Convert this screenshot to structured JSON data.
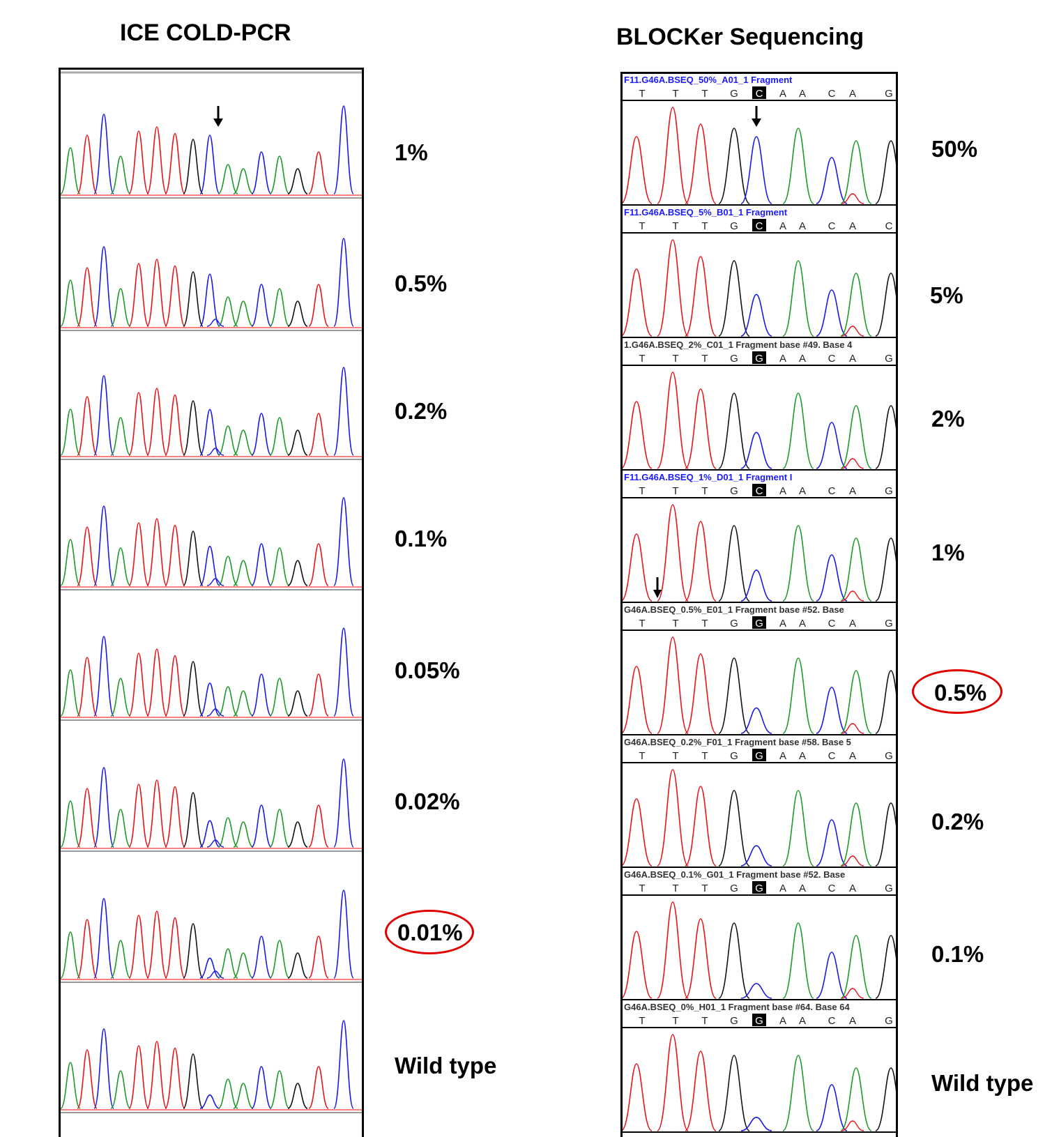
{
  "left": {
    "title": "ICE COLD-PCR",
    "labels": [
      "1%",
      "0.5%",
      "0.2%",
      "0.1%",
      "0.05%",
      "0.02%",
      "0.01%",
      "Wild type"
    ],
    "highlight_index": 6
  },
  "right": {
    "title": "BLOCKer Sequencing",
    "labels": [
      "50%",
      "5%",
      "2%",
      "1%",
      "0.5%",
      "0.2%",
      "0.1%",
      "Wild type"
    ],
    "highlight_index": 4,
    "traces": [
      {
        "header": "F11.G46A.BSEQ_50%_A01_1 Fragment",
        "bases": "T T T G C A A C A G",
        "header_color": "#1a1aff"
      },
      {
        "header": "F11.G46A.BSEQ_5%_B01_1 Fragment",
        "bases": "T T T G C A A C A C",
        "header_color": "#1a1aff"
      },
      {
        "header": "1.G46A.BSEQ_2%_C01_1 Fragment base #49. Base 4",
        "bases": "T T T G G A A C A G",
        "header_color": "#333333"
      },
      {
        "header": "F11.G46A.BSEQ_1%_D01_1 Fragment I",
        "bases": "T T T G C A A C A G",
        "header_color": "#1a1aff"
      },
      {
        "header": "G46A.BSEQ_0.5%_E01_1 Fragment base #52. Base",
        "bases": "T T T G G A A C A G",
        "header_color": "#333333"
      },
      {
        "header": "G46A.BSEQ_0.2%_F01_1 Fragment base #58. Base 5",
        "bases": "T T T G G A A C A G",
        "header_color": "#333333"
      },
      {
        "header": "G46A.BSEQ_0.1%_G01_1 Fragment base #52. Base",
        "bases": "T T T G G A A C A G",
        "header_color": "#333333"
      },
      {
        "header": "G46A.BSEQ_0%_H01_1 Fragment base #64. Base 64",
        "bases": "T T T G G A A C A G",
        "header_color": "#333333"
      }
    ]
  },
  "colors": {
    "red": "#e8141a",
    "green": "#1e9a2a",
    "blue": "#1a1ae6",
    "black": "#111111",
    "highlight": "#e00000"
  }
}
